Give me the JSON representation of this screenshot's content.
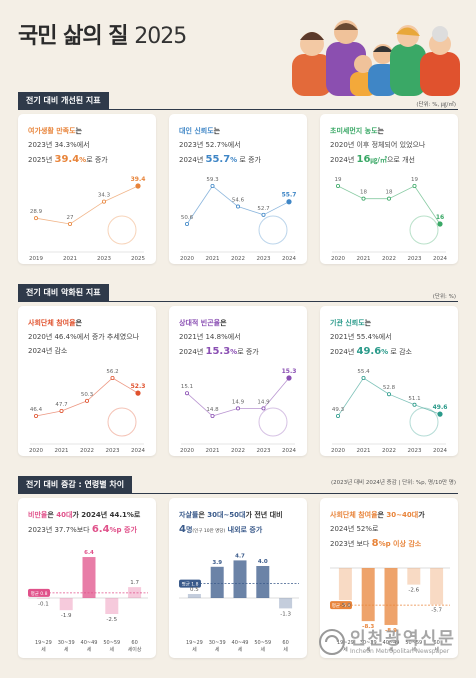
{
  "title": {
    "main": "국민 삶의 질",
    "year": "2025"
  },
  "sections": [
    {
      "heading": "전기 대비 개선된 지표",
      "unit": "(단위: %, ㎍/㎥)"
    },
    {
      "heading": "전기 대비 악화된 지표",
      "unit": "(단위: %)"
    },
    {
      "heading": "전기 대비 증감 : 연령별 차이",
      "unit": "(2023년 대비 2024년 증감 | 단위: %p, 명/10만 명)"
    }
  ],
  "cards": [
    {
      "title": "여가생활 만족도",
      "title_suffix": "는",
      "l1": "2023년 34.3%에서",
      "l2_pre": "2025년 ",
      "l2_big": "39.4",
      "l2_unit": "%",
      "l2_post": "로 증가",
      "color": "#e8843a"
    },
    {
      "title": "대인 신뢰도",
      "title_suffix": "는",
      "l1": "2023년 52.7%에서",
      "l2_pre": "2024년 ",
      "l2_big": "55.7",
      "l2_unit": "%",
      "l2_post": " 로 증가",
      "color": "#3f86c6"
    },
    {
      "title": "초미세먼지 농도",
      "title_suffix": "는",
      "l1": "2020년 이후 정체되어 있었으나",
      "l2_pre": "2024년 ",
      "l2_big": "16",
      "l2_unit": "㎍/㎥",
      "l2_post": "으로 개선",
      "color": "#3aa866"
    },
    {
      "title": "사회단체 참여율",
      "title_suffix": "은",
      "l1": "2020년 46.4%에서 증가 추세였으나",
      "l2_pre": "2024년 감소",
      "l2_big": "",
      "l2_unit": "",
      "l2_post": "",
      "color": "#e0522e"
    },
    {
      "title": "상대적 빈곤율",
      "title_suffix": "은",
      "l1": "2021년 14.8%에서",
      "l2_pre": "2024년 ",
      "l2_big": "15.3",
      "l2_unit": "%",
      "l2_post": "로 증가",
      "color": "#8a4fb3"
    },
    {
      "title": "기관 신뢰도",
      "title_suffix": "는",
      "l1": "2021년 55.4%에서",
      "l2_pre": "2024년 ",
      "l2_big": "49.6",
      "l2_unit": "%",
      "l2_post": " 로 감소",
      "color": "#2a9a8a"
    },
    {
      "title": "비만율",
      "title_mid": "은 ",
      "title_hl": "40대",
      "title_suffix": "가 2024년 44.1%로",
      "l1": "2023년 37.7%보다 ",
      "l1_big": "6.4",
      "l1_unit": "%p",
      "l1_post": " 증가",
      "color": "#e0518a"
    },
    {
      "title": "자살률",
      "title_mid": "은 ",
      "title_hl": "30대~50대",
      "title_suffix": "가 전년 대비",
      "l1_big": "4",
      "l1_unit": "명",
      "l1_note": "(인구 10만 명당)",
      "l1_post": " 내외로 증가",
      "color": "#3a5a8a"
    },
    {
      "title": "사회단체 참여율",
      "title_mid": "은 ",
      "title_hl": "30~40대",
      "title_suffix": "가",
      "l1": "2024년 52%로",
      "l1b_pre": "2023년 보다 ",
      "l1b_big": "8",
      "l1b_unit": "%p",
      "l1b_post": " 이상 감소",
      "color": "#e8843a"
    }
  ],
  "chart_data": [
    {
      "type": "line",
      "x": [
        "2019",
        "2021",
        "2023",
        "2025"
      ],
      "series": [
        {
          "values": [
            28.9,
            27.0,
            34.3,
            39.4
          ]
        }
      ]
    },
    {
      "type": "line",
      "x": [
        "2020",
        "2021",
        "2022",
        "2023",
        "2024"
      ],
      "series": [
        {
          "values": [
            50.6,
            59.3,
            54.6,
            52.7,
            55.7
          ]
        }
      ]
    },
    {
      "type": "line",
      "x": [
        "2020",
        "2021",
        "2022",
        "2023",
        "2024"
      ],
      "series": [
        {
          "values": [
            19,
            18,
            18,
            19,
            16
          ]
        }
      ]
    },
    {
      "type": "line",
      "x": [
        "2020",
        "2021",
        "2022",
        "2023",
        "2024"
      ],
      "series": [
        {
          "values": [
            46.4,
            47.7,
            50.3,
            56.2,
            52.3
          ]
        }
      ]
    },
    {
      "type": "line",
      "x": [
        "2020",
        "2021",
        "2022",
        "2023",
        "2024"
      ],
      "series": [
        {
          "values": [
            15.1,
            14.8,
            14.9,
            14.9,
            15.3
          ]
        }
      ]
    },
    {
      "type": "line",
      "x": [
        "2020",
        "2021",
        "2022",
        "2023",
        "2024"
      ],
      "series": [
        {
          "values": [
            49.3,
            55.4,
            52.8,
            51.1,
            49.6
          ]
        }
      ]
    },
    {
      "type": "bar",
      "categories": [
        "19~29세",
        "30~39세",
        "40~49세",
        "50~59세",
        "60세이상"
      ],
      "values": [
        -0.1,
        -1.9,
        6.4,
        -2.5,
        1.7
      ],
      "avg_label": "평균 0.8",
      "avg": 0.8
    },
    {
      "type": "bar",
      "categories": [
        "19~29세",
        "30~39세",
        "40~49세",
        "50~59세",
        "60세"
      ],
      "values": [
        0.5,
        3.9,
        4.7,
        4.0,
        -1.3
      ],
      "avg_label": "평균 1.8",
      "avg": 1.8
    },
    {
      "type": "bar",
      "categories": [
        "19~29세",
        "30~39세",
        "40~49세",
        "50~59세",
        "60세"
      ],
      "values": [
        -5.0,
        -8.3,
        -8.9,
        -2.6,
        -5.7
      ],
      "avg_label": "평균 -5.8",
      "avg": -5.8
    }
  ],
  "logo": {
    "name": "인천광역신문",
    "sub": "Incheon Metropolitan Newspaper"
  }
}
